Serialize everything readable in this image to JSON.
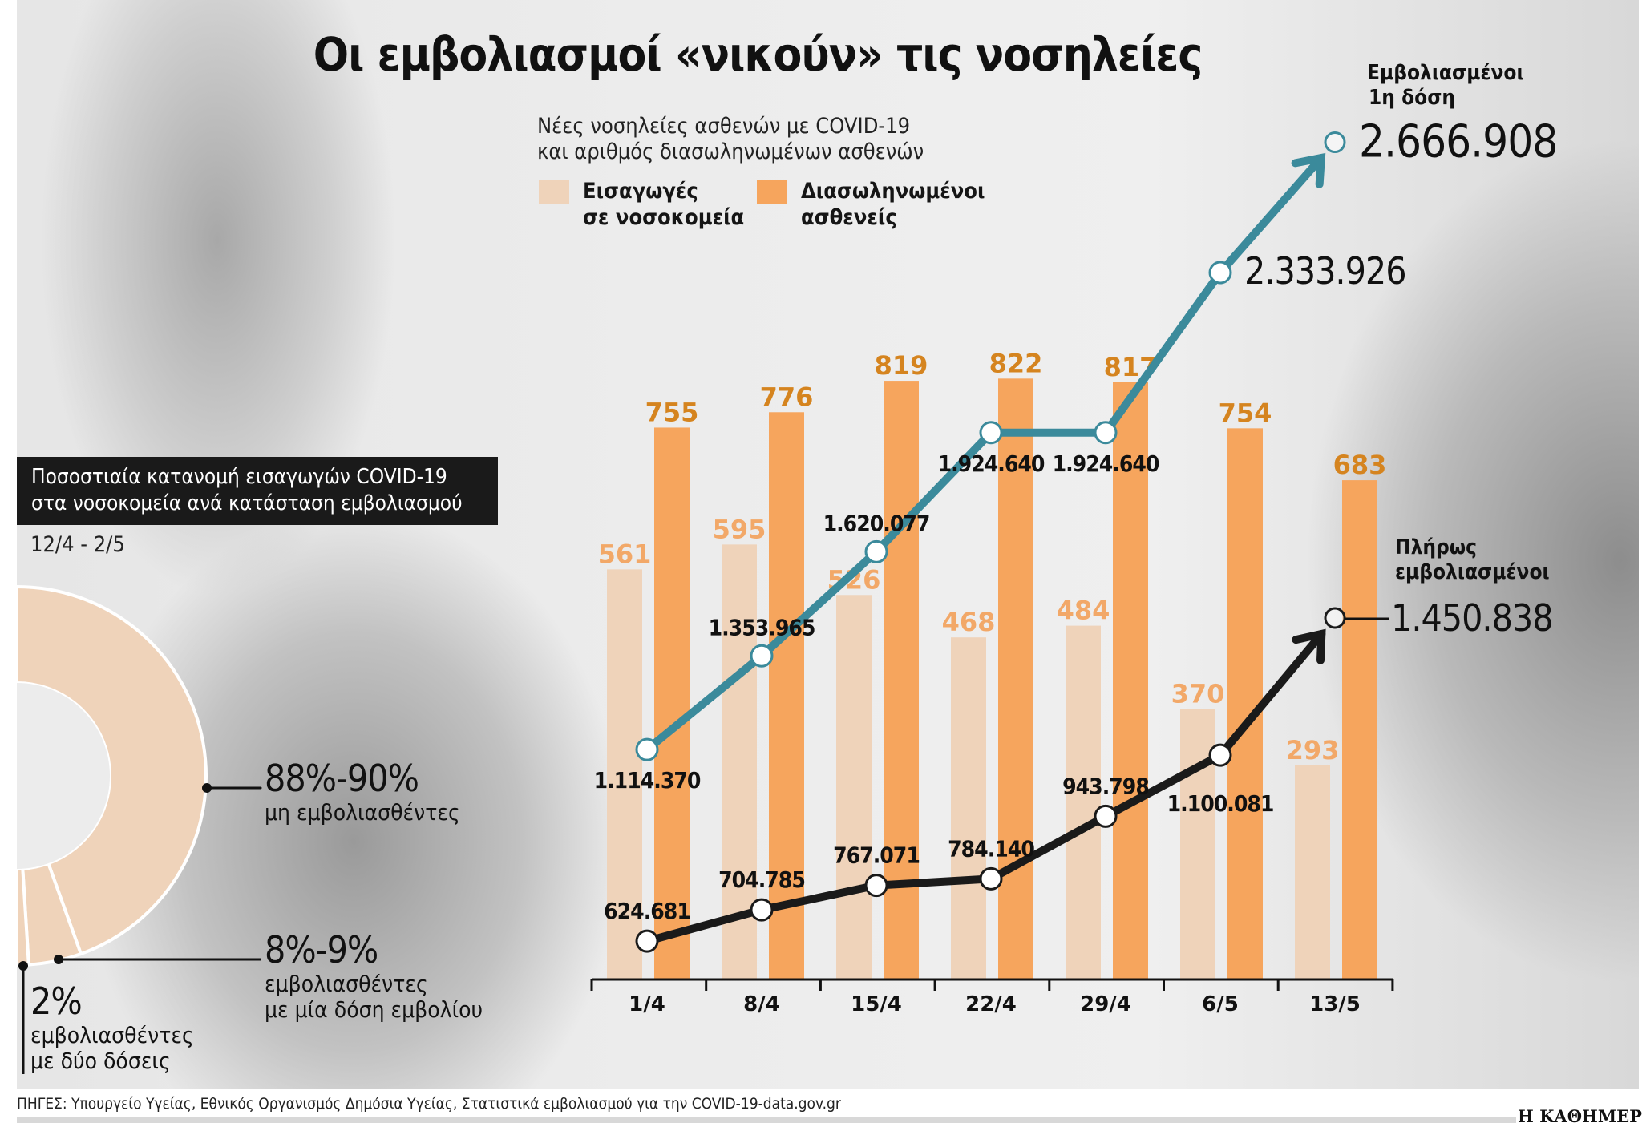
{
  "title": "Οι εμβολιασμοί «νικούν» τις νοσηλείες",
  "subtitle_line1": "Νέες νοσηλείες ασθενών με COVID-19",
  "subtitle_line2": "και αριθμός διασωληνωμένων ασθενών",
  "legend": [
    {
      "line1": "Εισαγωγές",
      "line2": "σε νοσοκομεία",
      "color": "#efd3ba"
    },
    {
      "line1": "Διασωληνωμένοι",
      "line2": "ασθενείς",
      "color": "#f6a55d"
    }
  ],
  "colors": {
    "first_dose_line": "#3b8a9b",
    "fully_vaccinated_line": "#1a1a1a",
    "admissions_label": "#f2a868",
    "intubated_label": "#d5841f"
  },
  "chart_data": {
    "type": "bar+line",
    "categories": [
      "1/4",
      "8/4",
      "15/4",
      "22/4",
      "29/4",
      "6/5",
      "13/5"
    ],
    "series": [
      {
        "name": "Εισαγωγές σε νοσοκομεία",
        "type": "bar",
        "values": [
          561,
          595,
          526,
          468,
          484,
          370,
          293
        ]
      },
      {
        "name": "Διασωληνωμένοι ασθενείς",
        "type": "bar",
        "values": [
          755,
          776,
          819,
          822,
          817,
          754,
          683
        ]
      },
      {
        "name": "Εμβολιασμένοι 1η δόση",
        "type": "line",
        "values": [
          1114370,
          1353965,
          1620077,
          1924640,
          1924640,
          2333926,
          2666908
        ],
        "labels": [
          "1.114.370",
          "1.353.965",
          "1.620.077",
          "1.924.640",
          "1.924.640",
          "2.333.926",
          "2.666.908"
        ]
      },
      {
        "name": "Πλήρως εμβολιασμένοι",
        "type": "line",
        "values": [
          624681,
          704785,
          767071,
          784140,
          943798,
          1100081,
          1450838
        ],
        "labels": [
          "624.681",
          "704.785",
          "767.071",
          "784.140",
          "943.798",
          "1.100.081",
          "1.450.838"
        ]
      }
    ],
    "first_dose_label_line1": "Εμβολιασμένοι",
    "first_dose_label_line2": "1η δόση",
    "fully_label_line1": "Πλήρως",
    "fully_label_line2": "εμβολιασμένοι"
  },
  "breakdown": {
    "title_line1": "Ποσοστιαία κατανομή εισαγωγών COVID-19",
    "title_line2": "στα νοσοκομεία ανά κατάσταση εμβολιασμού",
    "period": "12/4 - 2/5",
    "chart_data": {
      "type": "pie",
      "slices": [
        {
          "value": "88%-90%",
          "label": "μη εμβολιασθέντες",
          "share": 89
        },
        {
          "value": "8%-9%",
          "label_line1": "εμβολιασθέντες",
          "label_line2": "με μία δόση εμβολίου",
          "share": 9
        },
        {
          "value": "2%",
          "label_line1": "εμβολιασθέντες",
          "label_line2": "με δύο δόσεις",
          "share": 2
        }
      ]
    }
  },
  "footer": "ΠΗΓΕΣ: Υπουργείο Υγείας, Εθνικός Οργανισμός Δημόσια Υγείας, Στατιστικά εμβολιασμού για την COVID-19-data.gov.gr",
  "brand": "Η ΚΑΘΗΜΕΡΙΝΗ"
}
